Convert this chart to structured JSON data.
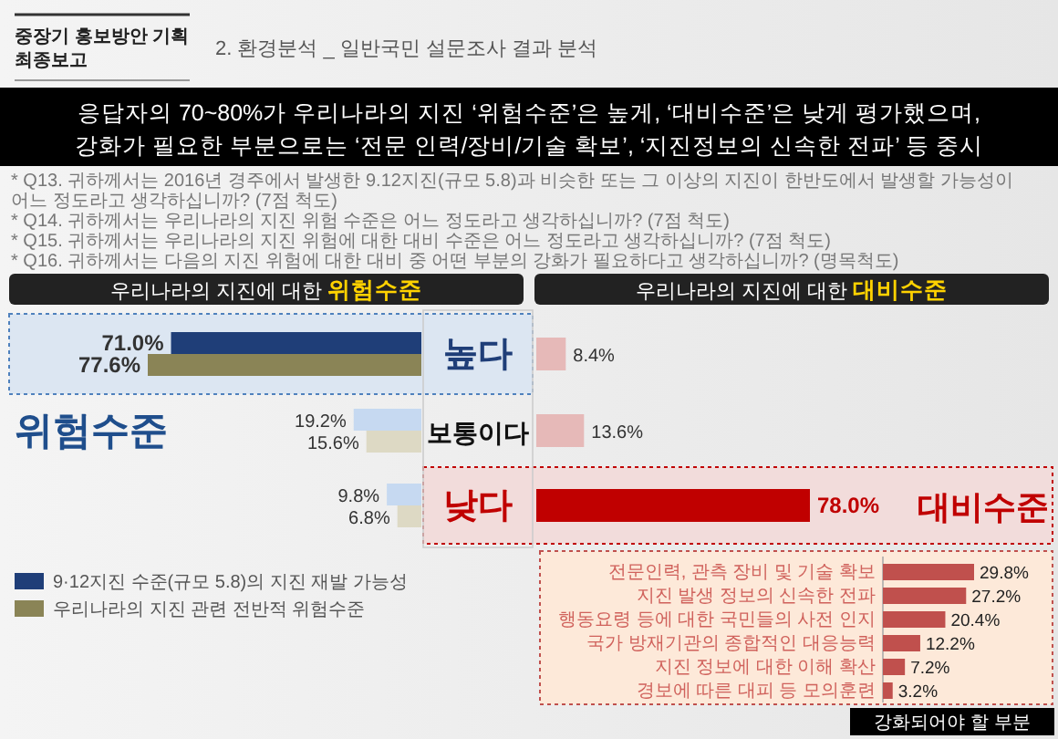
{
  "chart_data": [
    {
      "type": "other",
      "title": "2. 환경분석 _ 일반국민 설문조사 결과 분석",
      "subtitle": "응답자의 70~80%가 우리나라의 지진 ‘위험수준’은 높게, ‘대비수준’은 낮게 평가했으며,\n강화가 필요한 부분으로는 ‘전문 인력/장비/기술 확보’, ‘지진정보의 신속한 전파’ 등 중시",
      "annotations": [
        "중장기 홍보방안 기획\n최종보고",
        "* Q13. 귀하께서는 2016년 경주에서 발생한 9.12지진(규모 5.8)과 비슷한 또는 그 이상의 지진이 한반도에서 발생할 가능성이 어느 정도라고 생각하십니까? (7점 척도)",
        "* Q14. 귀하께서는 우리나라의 지진 위험 수준은 어느 정도라고 생각하십니까? (7점 척도)",
        "* Q15. 귀하께서는 우리나라의 지진 위험에 대한 대비 수준은 어느 정도라고 생각하십니까? (7점 척도)",
        "* Q16. 귀하께서는 다음의 지진 위험에 대한 대비 중 어떤 부분의 강화가 필요하다고 생각하십니까? (명목척도)"
      ]
    },
    {
      "type": "bar",
      "orientation": "horizontal",
      "title": "우리나라의 지진에 대한 위험수준",
      "categories": [
        "높다",
        "보통이다",
        "낮다"
      ],
      "legend": "bottom left",
      "annotations": [
        "위험수준"
      ],
      "series": [
        {
          "name": "9·12지진 수준(규모 5.8)의 지진 재발 가능성",
          "color": "#1f3e78",
          "colors": [
            "#1f3e78",
            "#c6d9f1",
            "#c6d9f1"
          ],
          "values": [
            71.0,
            19.2,
            9.8
          ],
          "value_labels": [
            "71.0%",
            "19.2%",
            "9.8%"
          ]
        },
        {
          "name": "우리나라의 지진 관련 전반적 위험수준",
          "color": "#8a8456",
          "colors": [
            "#8a8456",
            "#ddd9c4",
            "#ddd9c4"
          ],
          "values": [
            77.6,
            15.6,
            6.8
          ],
          "value_labels": [
            "77.6%",
            "15.6%",
            "6.8%"
          ]
        }
      ]
    },
    {
      "type": "bar",
      "orientation": "horizontal",
      "title": "우리나라의 지진에 대한 대비수준",
      "categories": [
        null,
        null,
        null
      ],
      "annotations": [
        "대비수준"
      ],
      "values": [
        8.4,
        13.6,
        78.0
      ],
      "colors": [
        "#e6b9b8",
        "#e6b9b8",
        "#c00000"
      ],
      "value_labels": [
        "8.4%",
        "13.6%",
        "78.0%"
      ]
    },
    {
      "type": "bar",
      "orientation": "horizontal",
      "categories": [
        "전문인력, 관측 장비 및 기술 확보",
        "지진 발생 정보의 신속한 전파",
        "행동요령 등에 대한 국민들의 사전 인지",
        "국가 방재기관의 종합적인 대응능력",
        "지진 정보에 대한 이해 확산",
        "경보에 따른 대피 등 모의훈련"
      ],
      "values": [
        29.8,
        27.2,
        20.4,
        12.2,
        7.2,
        3.2
      ],
      "color": "#c0504d",
      "value_labels": [
        "29.8%",
        "27.2%",
        "20.4%",
        "12.2%",
        "7.2%",
        "3.2%"
      ],
      "annotations": [
        "강화되어야 할 부분"
      ]
    }
  ]
}
